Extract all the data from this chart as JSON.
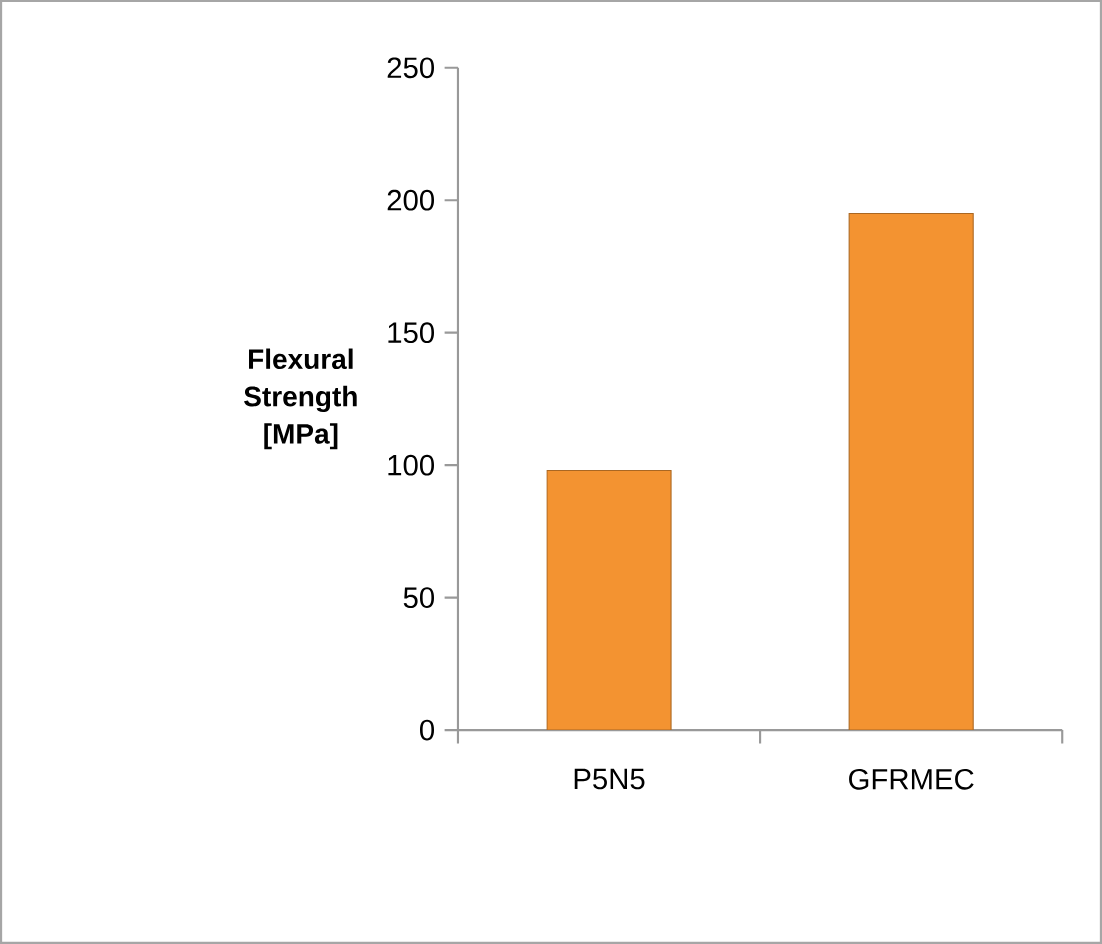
{
  "chart_data": {
    "type": "bar",
    "ylabel": "Flexural Strength [MPa]",
    "categories": [
      "P5N5",
      "GFRMEC"
    ],
    "values": [
      98,
      195
    ],
    "color": "#f39331",
    "ylim": [
      0,
      250
    ],
    "yticks": [
      0,
      50,
      100,
      150,
      200,
      250
    ]
  }
}
